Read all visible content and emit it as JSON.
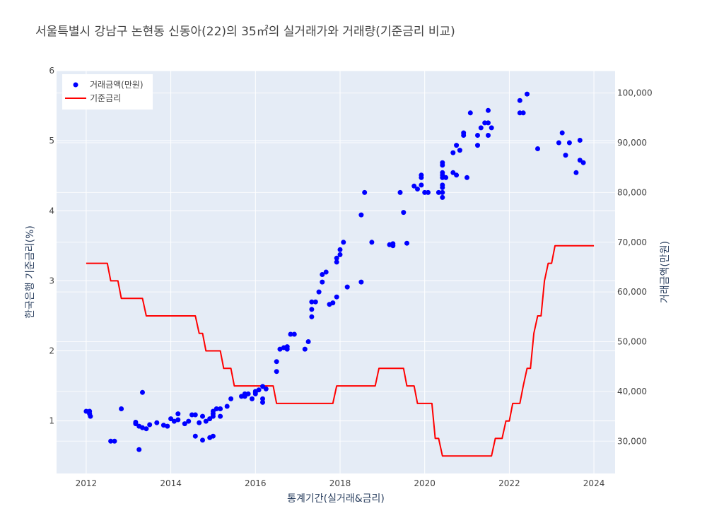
{
  "chart_data": {
    "type": "line",
    "title": "서울특별시 강남구 논현동 신동아(22)의 35㎡의 실거래가와 거래량(기준금리 비교)",
    "xlabel": "통계기간(실거래&금리)",
    "ylabel_left": "한국은행 기준금리(%)",
    "ylabel_right": "거래금액(만원)",
    "xlim": [
      2011.3,
      2024.5
    ],
    "ylim_left": [
      0.25,
      6.0
    ],
    "ylim_right": [
      23500,
      104500
    ],
    "x_ticks": [
      2012,
      2014,
      2016,
      2018,
      2020,
      2022,
      2024
    ],
    "x_tick_labels": [
      "2012",
      "2014",
      "2016",
      "2018",
      "2020",
      "2022",
      "2024"
    ],
    "y_left_ticks": [
      1,
      2,
      3,
      4,
      5,
      6
    ],
    "y_left_tick_labels": [
      "1",
      "2",
      "3",
      "4",
      "5",
      "6"
    ],
    "y_right_ticks": [
      30000,
      40000,
      50000,
      60000,
      70000,
      80000,
      90000,
      100000
    ],
    "y_right_tick_labels": [
      "30,000",
      "40,000",
      "50,000",
      "60,000",
      "70,000",
      "80,000",
      "90,000",
      "100,000"
    ],
    "grid": true,
    "legend_position": "top-left",
    "series": [
      {
        "name": "거래금액(만원)",
        "kind": "scatter",
        "axis": "right",
        "color": "#0000ff",
        "points": [
          [
            2012.0,
            36000
          ],
          [
            2012.08,
            36000
          ],
          [
            2012.08,
            35500
          ],
          [
            2012.1,
            35000
          ],
          [
            2012.58,
            30000
          ],
          [
            2012.67,
            30000
          ],
          [
            2012.83,
            36500
          ],
          [
            2013.17,
            33800
          ],
          [
            2013.17,
            33500
          ],
          [
            2013.25,
            28300
          ],
          [
            2013.25,
            33000
          ],
          [
            2013.33,
            39800
          ],
          [
            2013.33,
            32700
          ],
          [
            2013.42,
            32500
          ],
          [
            2013.5,
            33300
          ],
          [
            2013.67,
            33700
          ],
          [
            2013.83,
            33200
          ],
          [
            2013.92,
            33000
          ],
          [
            2014.0,
            34500
          ],
          [
            2014.08,
            34000
          ],
          [
            2014.17,
            34300
          ],
          [
            2014.17,
            35500
          ],
          [
            2014.33,
            33500
          ],
          [
            2014.42,
            34000
          ],
          [
            2014.5,
            35300
          ],
          [
            2014.58,
            35300
          ],
          [
            2014.58,
            31000
          ],
          [
            2014.67,
            33700
          ],
          [
            2014.75,
            35000
          ],
          [
            2014.75,
            30200
          ],
          [
            2014.83,
            34000
          ],
          [
            2014.92,
            34500
          ],
          [
            2014.92,
            30700
          ],
          [
            2015.0,
            35000
          ],
          [
            2015.0,
            35500
          ],
          [
            2015.0,
            36000
          ],
          [
            2015.0,
            31000
          ],
          [
            2015.08,
            36500
          ],
          [
            2015.17,
            35000
          ],
          [
            2015.17,
            36500
          ],
          [
            2015.33,
            37000
          ],
          [
            2015.42,
            38500
          ],
          [
            2015.67,
            39000
          ],
          [
            2015.75,
            39000
          ],
          [
            2015.75,
            39500
          ],
          [
            2015.83,
            39500
          ],
          [
            2015.92,
            38500
          ],
          [
            2016.0,
            40000
          ],
          [
            2016.0,
            39800
          ],
          [
            2016.0,
            39500
          ],
          [
            2016.08,
            40300
          ],
          [
            2016.17,
            41000
          ],
          [
            2016.17,
            38500
          ],
          [
            2016.17,
            37800
          ],
          [
            2016.25,
            40500
          ],
          [
            2016.5,
            44000
          ],
          [
            2016.5,
            46000
          ],
          [
            2016.58,
            48500
          ],
          [
            2016.67,
            48800
          ],
          [
            2016.75,
            49000
          ],
          [
            2016.75,
            48500
          ],
          [
            2016.83,
            51500
          ],
          [
            2016.92,
            51500
          ],
          [
            2017.17,
            48500
          ],
          [
            2017.25,
            50000
          ],
          [
            2017.33,
            56500
          ],
          [
            2017.33,
            55000
          ],
          [
            2017.33,
            58000
          ],
          [
            2017.42,
            58000
          ],
          [
            2017.5,
            60000
          ],
          [
            2017.58,
            62000
          ],
          [
            2017.58,
            63500
          ],
          [
            2017.67,
            64000
          ],
          [
            2017.75,
            57500
          ],
          [
            2017.83,
            57800
          ],
          [
            2017.92,
            59000
          ],
          [
            2017.92,
            66000
          ],
          [
            2017.92,
            66800
          ],
          [
            2018.0,
            67500
          ],
          [
            2018.0,
            68500
          ],
          [
            2018.08,
            70000
          ],
          [
            2018.17,
            61000
          ],
          [
            2018.5,
            62000
          ],
          [
            2018.5,
            75500
          ],
          [
            2018.58,
            80000
          ],
          [
            2018.75,
            70000
          ],
          [
            2019.17,
            69500
          ],
          [
            2019.25,
            69300
          ],
          [
            2019.25,
            69700
          ],
          [
            2019.42,
            80000
          ],
          [
            2019.5,
            76000
          ],
          [
            2019.58,
            69800
          ],
          [
            2019.75,
            81300
          ],
          [
            2019.83,
            80700
          ],
          [
            2019.92,
            81500
          ],
          [
            2019.92,
            83000
          ],
          [
            2019.92,
            83500
          ],
          [
            2020.0,
            80000
          ],
          [
            2020.08,
            80000
          ],
          [
            2020.33,
            80000
          ],
          [
            2020.42,
            79000
          ],
          [
            2020.42,
            80000
          ],
          [
            2020.42,
            81000
          ],
          [
            2020.42,
            81500
          ],
          [
            2020.42,
            83000
          ],
          [
            2020.42,
            83500
          ],
          [
            2020.42,
            84000
          ],
          [
            2020.42,
            85500
          ],
          [
            2020.42,
            86000
          ],
          [
            2020.5,
            83000
          ],
          [
            2020.67,
            88000
          ],
          [
            2020.67,
            84000
          ],
          [
            2020.75,
            89500
          ],
          [
            2020.75,
            83500
          ],
          [
            2020.83,
            88500
          ],
          [
            2020.92,
            91500
          ],
          [
            2020.92,
            92000
          ],
          [
            2021.0,
            83000
          ],
          [
            2021.08,
            96000
          ],
          [
            2021.25,
            91500
          ],
          [
            2021.25,
            89500
          ],
          [
            2021.33,
            93000
          ],
          [
            2021.42,
            94000
          ],
          [
            2021.5,
            94000
          ],
          [
            2021.5,
            96500
          ],
          [
            2021.5,
            91500
          ],
          [
            2021.58,
            93000
          ],
          [
            2022.25,
            98500
          ],
          [
            2022.25,
            96000
          ],
          [
            2022.33,
            96000
          ],
          [
            2022.42,
            99800
          ],
          [
            2022.67,
            88800
          ],
          [
            2023.17,
            90000
          ],
          [
            2023.25,
            92000
          ],
          [
            2023.33,
            87500
          ],
          [
            2023.42,
            90000
          ],
          [
            2023.58,
            84000
          ],
          [
            2023.67,
            90500
          ],
          [
            2023.67,
            86500
          ],
          [
            2023.75,
            86000
          ]
        ]
      },
      {
        "name": "기준금리",
        "kind": "step-line",
        "axis": "left",
        "color": "#ff0000",
        "points": [
          [
            2012.0,
            3.25
          ],
          [
            2012.5,
            3.25
          ],
          [
            2012.58,
            3.0
          ],
          [
            2012.75,
            3.0
          ],
          [
            2012.83,
            2.75
          ],
          [
            2013.33,
            2.75
          ],
          [
            2013.42,
            2.5
          ],
          [
            2014.58,
            2.5
          ],
          [
            2014.67,
            2.25
          ],
          [
            2014.75,
            2.25
          ],
          [
            2014.83,
            2.0
          ],
          [
            2015.17,
            2.0
          ],
          [
            2015.25,
            1.75
          ],
          [
            2015.42,
            1.75
          ],
          [
            2015.5,
            1.5
          ],
          [
            2016.42,
            1.5
          ],
          [
            2016.5,
            1.25
          ],
          [
            2017.83,
            1.25
          ],
          [
            2017.92,
            1.5
          ],
          [
            2018.83,
            1.5
          ],
          [
            2018.92,
            1.75
          ],
          [
            2019.5,
            1.75
          ],
          [
            2019.58,
            1.5
          ],
          [
            2019.75,
            1.5
          ],
          [
            2019.83,
            1.25
          ],
          [
            2020.17,
            1.25
          ],
          [
            2020.25,
            0.75
          ],
          [
            2020.33,
            0.75
          ],
          [
            2020.42,
            0.5
          ],
          [
            2021.58,
            0.5
          ],
          [
            2021.67,
            0.75
          ],
          [
            2021.83,
            0.75
          ],
          [
            2021.92,
            1.0
          ],
          [
            2022.0,
            1.0
          ],
          [
            2022.08,
            1.25
          ],
          [
            2022.25,
            1.25
          ],
          [
            2022.33,
            1.5
          ],
          [
            2022.42,
            1.75
          ],
          [
            2022.5,
            1.75
          ],
          [
            2022.58,
            2.25
          ],
          [
            2022.67,
            2.5
          ],
          [
            2022.75,
            2.5
          ],
          [
            2022.83,
            3.0
          ],
          [
            2022.92,
            3.25
          ],
          [
            2023.0,
            3.25
          ],
          [
            2023.08,
            3.5
          ],
          [
            2024.0,
            3.5
          ]
        ]
      }
    ]
  }
}
